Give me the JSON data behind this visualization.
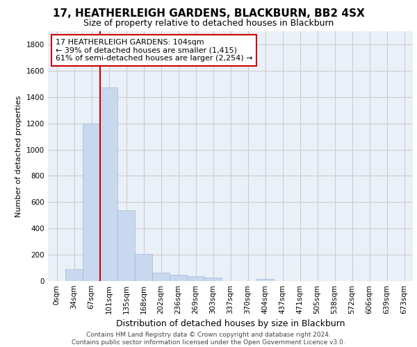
{
  "title1": "17, HEATHERLEIGH GARDENS, BLACKBURN, BB2 4SX",
  "title2": "Size of property relative to detached houses in Blackburn",
  "xlabel": "Distribution of detached houses by size in Blackburn",
  "ylabel": "Number of detached properties",
  "footer1": "Contains HM Land Registry data © Crown copyright and database right 2024.",
  "footer2": "Contains public sector information licensed under the Open Government Licence v3.0.",
  "bar_labels": [
    "0sqm",
    "34sqm",
    "67sqm",
    "101sqm",
    "135sqm",
    "168sqm",
    "202sqm",
    "236sqm",
    "269sqm",
    "303sqm",
    "337sqm",
    "370sqm",
    "404sqm",
    "437sqm",
    "471sqm",
    "505sqm",
    "538sqm",
    "572sqm",
    "606sqm",
    "639sqm",
    "673sqm"
  ],
  "bar_values": [
    0,
    90,
    1200,
    1470,
    540,
    205,
    65,
    47,
    35,
    28,
    0,
    0,
    15,
    0,
    0,
    0,
    0,
    0,
    0,
    0,
    0
  ],
  "bar_color": "#c8d8ee",
  "bar_edgecolor": "#a0b8d8",
  "vline_color": "#cc0000",
  "annotation_text": "17 HEATHERLEIGH GARDENS: 104sqm\n← 39% of detached houses are smaller (1,415)\n61% of semi-detached houses are larger (2,254) →",
  "annotation_box_color": "#ffffff",
  "annotation_border_color": "#cc0000",
  "ylim": [
    0,
    1900
  ],
  "yticks": [
    0,
    200,
    400,
    600,
    800,
    1000,
    1200,
    1400,
    1600,
    1800
  ],
  "grid_color": "#cccccc",
  "background_color": "#eaf0f8",
  "title1_fontsize": 11,
  "title2_fontsize": 9,
  "xlabel_fontsize": 9,
  "ylabel_fontsize": 8,
  "tick_fontsize": 7.5,
  "footer_fontsize": 6.5
}
